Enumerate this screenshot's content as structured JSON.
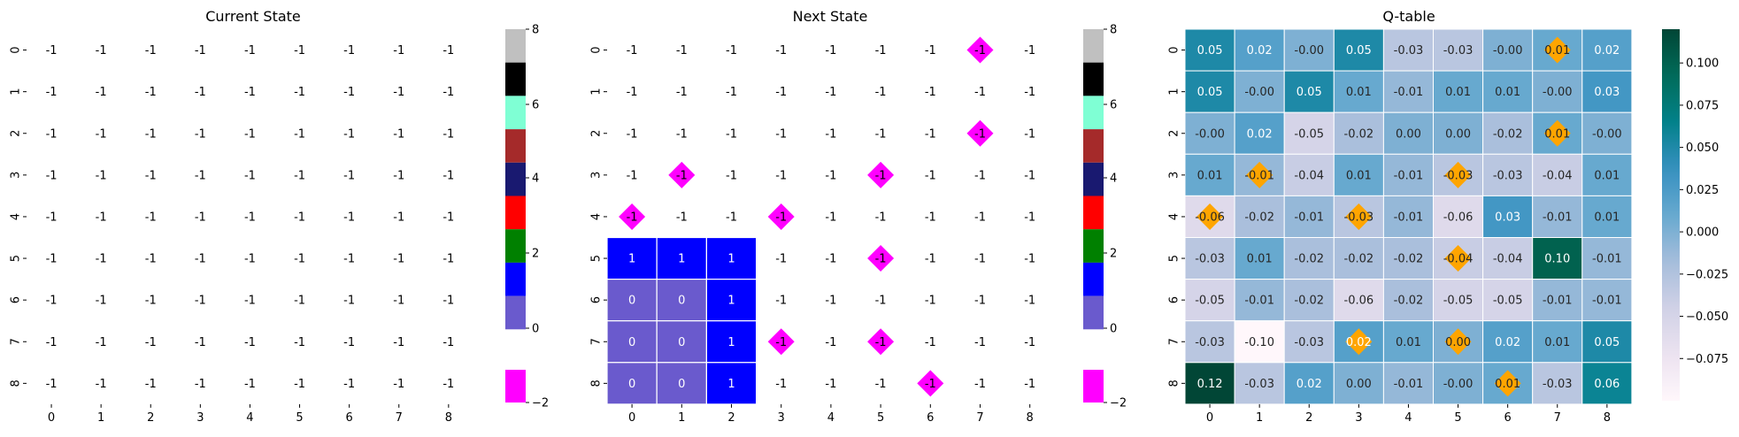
{
  "chart_data": [
    {
      "type": "heatmap",
      "title": "Current State",
      "xlabel": "",
      "ylabel": "",
      "x_ticks": [
        "0",
        "1",
        "2",
        "3",
        "4",
        "5",
        "6",
        "7",
        "8"
      ],
      "y_ticks": [
        "0",
        "1",
        "2",
        "3",
        "4",
        "5",
        "6",
        "7",
        "8"
      ],
      "values": [
        [
          -1,
          -1,
          -1,
          -1,
          -1,
          -1,
          -1,
          -1,
          -1
        ],
        [
          -1,
          -1,
          -1,
          -1,
          -1,
          -1,
          -1,
          -1,
          -1
        ],
        [
          -1,
          -1,
          -1,
          -1,
          -1,
          -1,
          -1,
          -1,
          -1
        ],
        [
          -1,
          -1,
          -1,
          -1,
          -1,
          -1,
          -1,
          -1,
          -1
        ],
        [
          -1,
          -1,
          -1,
          -1,
          -1,
          -1,
          -1,
          -1,
          -1
        ],
        [
          -1,
          -1,
          -1,
          -1,
          -1,
          -1,
          -1,
          -1,
          -1
        ],
        [
          -1,
          -1,
          -1,
          -1,
          -1,
          -1,
          -1,
          -1,
          -1
        ],
        [
          -1,
          -1,
          -1,
          -1,
          -1,
          -1,
          -1,
          -1,
          -1
        ],
        [
          -1,
          -1,
          -1,
          -1,
          -1,
          -1,
          -1,
          -1,
          -1
        ]
      ],
      "markers": [],
      "colorbar": {
        "type": "discrete",
        "ticks": [
          "8",
          "6",
          "4",
          "2",
          "0",
          "−2"
        ],
        "levels": [
          {
            "value": 8,
            "color": "#c0c0c0"
          },
          {
            "value": 7,
            "color": "#000000"
          },
          {
            "value": 6,
            "color": "#7fffd4"
          },
          {
            "value": 5,
            "color": "#a52a2a"
          },
          {
            "value": 4,
            "color": "#191970"
          },
          {
            "value": 3,
            "color": "#ff0000"
          },
          {
            "value": 2,
            "color": "#008000"
          },
          {
            "value": 1,
            "color": "#0000ff"
          },
          {
            "value": 0,
            "color": "#6a5acd"
          },
          {
            "value": -2,
            "color": "#ff00ff"
          }
        ]
      }
    },
    {
      "type": "heatmap",
      "title": "Next State",
      "xlabel": "",
      "ylabel": "",
      "x_ticks": [
        "0",
        "1",
        "2",
        "3",
        "4",
        "5",
        "6",
        "7",
        "8"
      ],
      "y_ticks": [
        "0",
        "1",
        "2",
        "3",
        "4",
        "5",
        "6",
        "7",
        "8"
      ],
      "values": [
        [
          -1,
          -1,
          -1,
          -1,
          -1,
          -1,
          -1,
          -1,
          -1
        ],
        [
          -1,
          -1,
          -1,
          -1,
          -1,
          -1,
          -1,
          -1,
          -1
        ],
        [
          -1,
          -1,
          -1,
          -1,
          -1,
          -1,
          -1,
          -1,
          -1
        ],
        [
          -1,
          -1,
          -1,
          -1,
          -1,
          -1,
          -1,
          -1,
          -1
        ],
        [
          -1,
          -1,
          -1,
          -1,
          -1,
          -1,
          -1,
          -1,
          -1
        ],
        [
          1,
          1,
          1,
          -1,
          -1,
          -1,
          -1,
          -1,
          -1
        ],
        [
          0,
          0,
          1,
          -1,
          -1,
          -1,
          -1,
          -1,
          -1
        ],
        [
          0,
          0,
          1,
          -1,
          -1,
          -1,
          -1,
          -1,
          -1
        ],
        [
          0,
          0,
          1,
          -1,
          -1,
          -1,
          -1,
          -1,
          -1
        ]
      ],
      "markers": [
        [
          0,
          7
        ],
        [
          2,
          7
        ],
        [
          3,
          1
        ],
        [
          3,
          5
        ],
        [
          4,
          0
        ],
        [
          4,
          3
        ],
        [
          5,
          5
        ],
        [
          7,
          3
        ],
        [
          7,
          5
        ],
        [
          8,
          6
        ]
      ],
      "colorbar": {
        "type": "discrete",
        "ticks": [
          "8",
          "6",
          "4",
          "2",
          "0",
          "−2"
        ],
        "levels": [
          {
            "value": 8,
            "color": "#c0c0c0"
          },
          {
            "value": 7,
            "color": "#000000"
          },
          {
            "value": 6,
            "color": "#7fffd4"
          },
          {
            "value": 5,
            "color": "#a52a2a"
          },
          {
            "value": 4,
            "color": "#191970"
          },
          {
            "value": 3,
            "color": "#ff0000"
          },
          {
            "value": 2,
            "color": "#008000"
          },
          {
            "value": 1,
            "color": "#0000ff"
          },
          {
            "value": 0,
            "color": "#6a5acd"
          },
          {
            "value": -2,
            "color": "#ff00ff"
          }
        ]
      }
    },
    {
      "type": "heatmap",
      "title": "Q-table",
      "xlabel": "",
      "ylabel": "",
      "x_ticks": [
        "0",
        "1",
        "2",
        "3",
        "4",
        "5",
        "6",
        "7",
        "8"
      ],
      "y_ticks": [
        "0",
        "1",
        "2",
        "3",
        "4",
        "5",
        "6",
        "7",
        "8"
      ],
      "labels": [
        [
          "0.05",
          "0.02",
          "-0.00",
          "0.05",
          "-0.03",
          "-0.03",
          "-0.00",
          "0.01",
          "0.02"
        ],
        [
          "0.05",
          "-0.00",
          "0.05",
          "0.01",
          "-0.01",
          "0.01",
          "0.01",
          "-0.00",
          "0.03"
        ],
        [
          "-0.00",
          "0.02",
          "-0.05",
          "-0.02",
          "0.00",
          "0.00",
          "-0.02",
          "0.01",
          "-0.00"
        ],
        [
          "0.01",
          "-0.01",
          "-0.04",
          "0.01",
          "-0.01",
          "-0.03",
          "-0.03",
          "-0.04",
          "0.01"
        ],
        [
          "-0.06",
          "-0.02",
          "-0.01",
          "-0.03",
          "-0.01",
          "-0.06",
          "0.03",
          "-0.01",
          "0.01"
        ],
        [
          "-0.03",
          "0.01",
          "-0.02",
          "-0.02",
          "-0.02",
          "-0.04",
          "-0.04",
          "0.10",
          "-0.01"
        ],
        [
          "-0.05",
          "-0.01",
          "-0.02",
          "-0.06",
          "-0.02",
          "-0.05",
          "-0.05",
          "-0.01",
          "-0.01"
        ],
        [
          "-0.03",
          "-0.10",
          "-0.03",
          "0.02",
          "0.01",
          "0.00",
          "0.02",
          "0.01",
          "0.05"
        ],
        [
          "0.12",
          "-0.03",
          "0.02",
          "0.00",
          "-0.01",
          "-0.00",
          "0.01",
          "-0.03",
          "0.06"
        ]
      ],
      "markers": [
        [
          0,
          7
        ],
        [
          2,
          7
        ],
        [
          3,
          1
        ],
        [
          3,
          5
        ],
        [
          4,
          0
        ],
        [
          4,
          3
        ],
        [
          5,
          5
        ],
        [
          7,
          3
        ],
        [
          7,
          5
        ],
        [
          8,
          6
        ]
      ],
      "colorbar": {
        "type": "continuous",
        "range": [
          -0.1,
          0.12
        ],
        "ticks": [
          0.1,
          0.075,
          0.05,
          0.025,
          0.0,
          -0.025,
          -0.05,
          -0.075
        ],
        "tick_labels": [
          "0.100",
          "0.075",
          "0.050",
          "0.025",
          "0.000",
          "−0.025",
          "−0.050",
          "−0.075"
        ],
        "colormap": "PuBuGn"
      }
    }
  ]
}
